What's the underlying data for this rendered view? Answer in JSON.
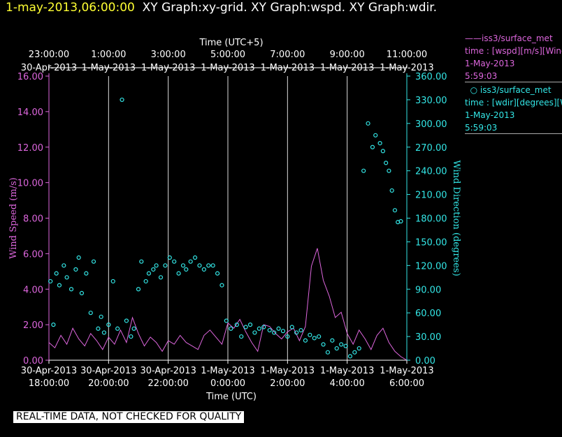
{
  "title": {
    "timestamp": "1-may-2013,06:00:00",
    "graphs": "XY Graph:xy-grid.  XY Graph:wspd.  XY Graph:wdir."
  },
  "notice": "REAL-TIME DATA, NOT CHECKED FOR QUALITY",
  "legend": {
    "wspd": {
      "line1": "iss3/surface_met",
      "line2": "time : [wspd][m/s][Wind",
      "line3": "1-May-2013",
      "line4": "5:59:03"
    },
    "wdir": {
      "line1": "iss3/surface_met",
      "line2": "time : [wdir][degrees][Wind",
      "line3": "1-May-2013",
      "line4": "5:59:03"
    }
  },
  "chart_data": {
    "type": "line",
    "top_axis_label": "Time (UTC+5)",
    "bottom_axis_label": "Time (UTC)",
    "ylabel_left": "Wind Speed (m/s)",
    "ylabel_right": "Wind Direction (degrees)",
    "x_range_hours": [
      18.0,
      30.0
    ],
    "ylim_left": [
      0,
      16
    ],
    "ylim_right": [
      0,
      360
    ],
    "yticks_left": [
      "0.00",
      "2.00",
      "4.00",
      "6.00",
      "8.00",
      "10.00",
      "12.00",
      "14.00",
      "16.00"
    ],
    "yticks_right": [
      "0.00",
      "30.00",
      "60.00",
      "90.00",
      "120.00",
      "150.00",
      "180.00",
      "210.00",
      "240.00",
      "270.00",
      "300.00",
      "330.00",
      "360.00"
    ],
    "bottom_ticks": [
      {
        "hour": 18,
        "date": "30-Apr-2013",
        "time": "18:00:00"
      },
      {
        "hour": 20,
        "date": "30-Apr-2013",
        "time": "20:00:00"
      },
      {
        "hour": 22,
        "date": "30-Apr-2013",
        "time": "22:00:00"
      },
      {
        "hour": 24,
        "date": "1-May-2013",
        "time": "0:00:00"
      },
      {
        "hour": 26,
        "date": "1-May-2013",
        "time": "2:00:00"
      },
      {
        "hour": 28,
        "date": "1-May-2013",
        "time": "4:00:00"
      },
      {
        "hour": 30,
        "date": "1-May-2013",
        "time": "6:00:00"
      }
    ],
    "top_ticks": [
      {
        "hour": 18,
        "time": "23:00:00",
        "date": "30-Apr-2013"
      },
      {
        "hour": 20,
        "time": "1:00:00",
        "date": "1-May-2013"
      },
      {
        "hour": 22,
        "time": "3:00:00",
        "date": "1-May-2013"
      },
      {
        "hour": 24,
        "time": "5:00:00",
        "date": "1-May-2013"
      },
      {
        "hour": 26,
        "time": "7:00:00",
        "date": "1-May-2013"
      },
      {
        "hour": 28,
        "time": "9:00:00",
        "date": "1-May-2013"
      },
      {
        "hour": 30,
        "time": "11:00:00",
        "date": "1-May-2013"
      }
    ],
    "series": [
      {
        "name": "wspd",
        "kind": "line",
        "color": "#dd66dd",
        "axis": "left",
        "x_hours": [
          18.0,
          18.2,
          18.4,
          18.6,
          18.8,
          19.0,
          19.2,
          19.4,
          19.6,
          19.8,
          20.0,
          20.2,
          20.4,
          20.6,
          20.8,
          21.0,
          21.2,
          21.4,
          21.6,
          21.8,
          22.0,
          22.2,
          22.4,
          22.6,
          22.8,
          23.0,
          23.2,
          23.4,
          23.6,
          23.8,
          24.0,
          24.2,
          24.4,
          24.6,
          24.8,
          25.0,
          25.2,
          25.4,
          25.6,
          25.8,
          26.0,
          26.2,
          26.4,
          26.6,
          26.8,
          27.0,
          27.2,
          27.4,
          27.6,
          27.8,
          28.0,
          28.2,
          28.4,
          28.6,
          28.8,
          29.0,
          29.2,
          29.4,
          29.6,
          29.8,
          30.0
        ],
        "values": [
          1.0,
          0.7,
          1.4,
          0.9,
          1.8,
          1.2,
          0.8,
          1.5,
          1.1,
          0.6,
          1.3,
          0.9,
          1.7,
          1.0,
          2.4,
          1.5,
          0.8,
          1.3,
          1.0,
          0.5,
          1.1,
          0.9,
          1.4,
          1.0,
          0.8,
          0.6,
          1.4,
          1.7,
          1.3,
          0.9,
          2.1,
          1.8,
          2.3,
          1.6,
          1.0,
          0.5,
          2.0,
          1.9,
          1.5,
          1.2,
          1.6,
          1.8,
          1.1,
          1.9,
          5.3,
          6.3,
          4.5,
          3.6,
          2.4,
          2.7,
          1.5,
          0.9,
          1.7,
          1.2,
          0.6,
          1.4,
          1.8,
          1.0,
          0.5,
          0.2,
          0.0
        ]
      },
      {
        "name": "wdir",
        "kind": "scatter",
        "color": "#33e6e6",
        "axis": "right",
        "x_hours": [
          18.05,
          18.15,
          18.25,
          18.35,
          18.5,
          18.6,
          18.75,
          18.9,
          19.0,
          19.1,
          19.25,
          19.4,
          19.5,
          19.65,
          19.75,
          19.85,
          20.0,
          20.15,
          20.3,
          20.45,
          20.6,
          20.75,
          20.85,
          21.0,
          21.1,
          21.25,
          21.35,
          21.5,
          21.6,
          21.75,
          21.9,
          22.05,
          22.2,
          22.35,
          22.5,
          22.6,
          22.75,
          22.9,
          23.05,
          23.2,
          23.35,
          23.5,
          23.65,
          23.8,
          23.95,
          24.1,
          24.3,
          24.45,
          24.6,
          24.75,
          24.9,
          25.05,
          25.2,
          25.4,
          25.55,
          25.7,
          25.85,
          26.0,
          26.15,
          26.3,
          26.45,
          26.6,
          26.75,
          26.9,
          27.05,
          27.2,
          27.35,
          27.5,
          27.65,
          27.8,
          27.95,
          28.1,
          28.25,
          28.4,
          28.55,
          28.7,
          28.85,
          28.95,
          29.1,
          29.2,
          29.3,
          29.4,
          29.5,
          29.6,
          29.7,
          29.8
        ],
        "values": [
          100,
          45,
          110,
          95,
          120,
          105,
          90,
          115,
          130,
          85,
          110,
          60,
          125,
          40,
          55,
          35,
          45,
          100,
          40,
          330,
          50,
          30,
          40,
          90,
          125,
          100,
          110,
          115,
          120,
          105,
          120,
          130,
          125,
          110,
          120,
          115,
          125,
          130,
          120,
          115,
          120,
          120,
          110,
          95,
          50,
          40,
          45,
          30,
          42,
          45,
          35,
          40,
          42,
          38,
          35,
          40,
          37,
          30,
          42,
          35,
          38,
          25,
          32,
          28,
          30,
          20,
          10,
          25,
          15,
          20,
          18,
          5,
          10,
          15,
          240,
          300,
          270,
          285,
          275,
          265,
          250,
          240,
          215,
          190,
          175,
          176
        ]
      }
    ]
  }
}
